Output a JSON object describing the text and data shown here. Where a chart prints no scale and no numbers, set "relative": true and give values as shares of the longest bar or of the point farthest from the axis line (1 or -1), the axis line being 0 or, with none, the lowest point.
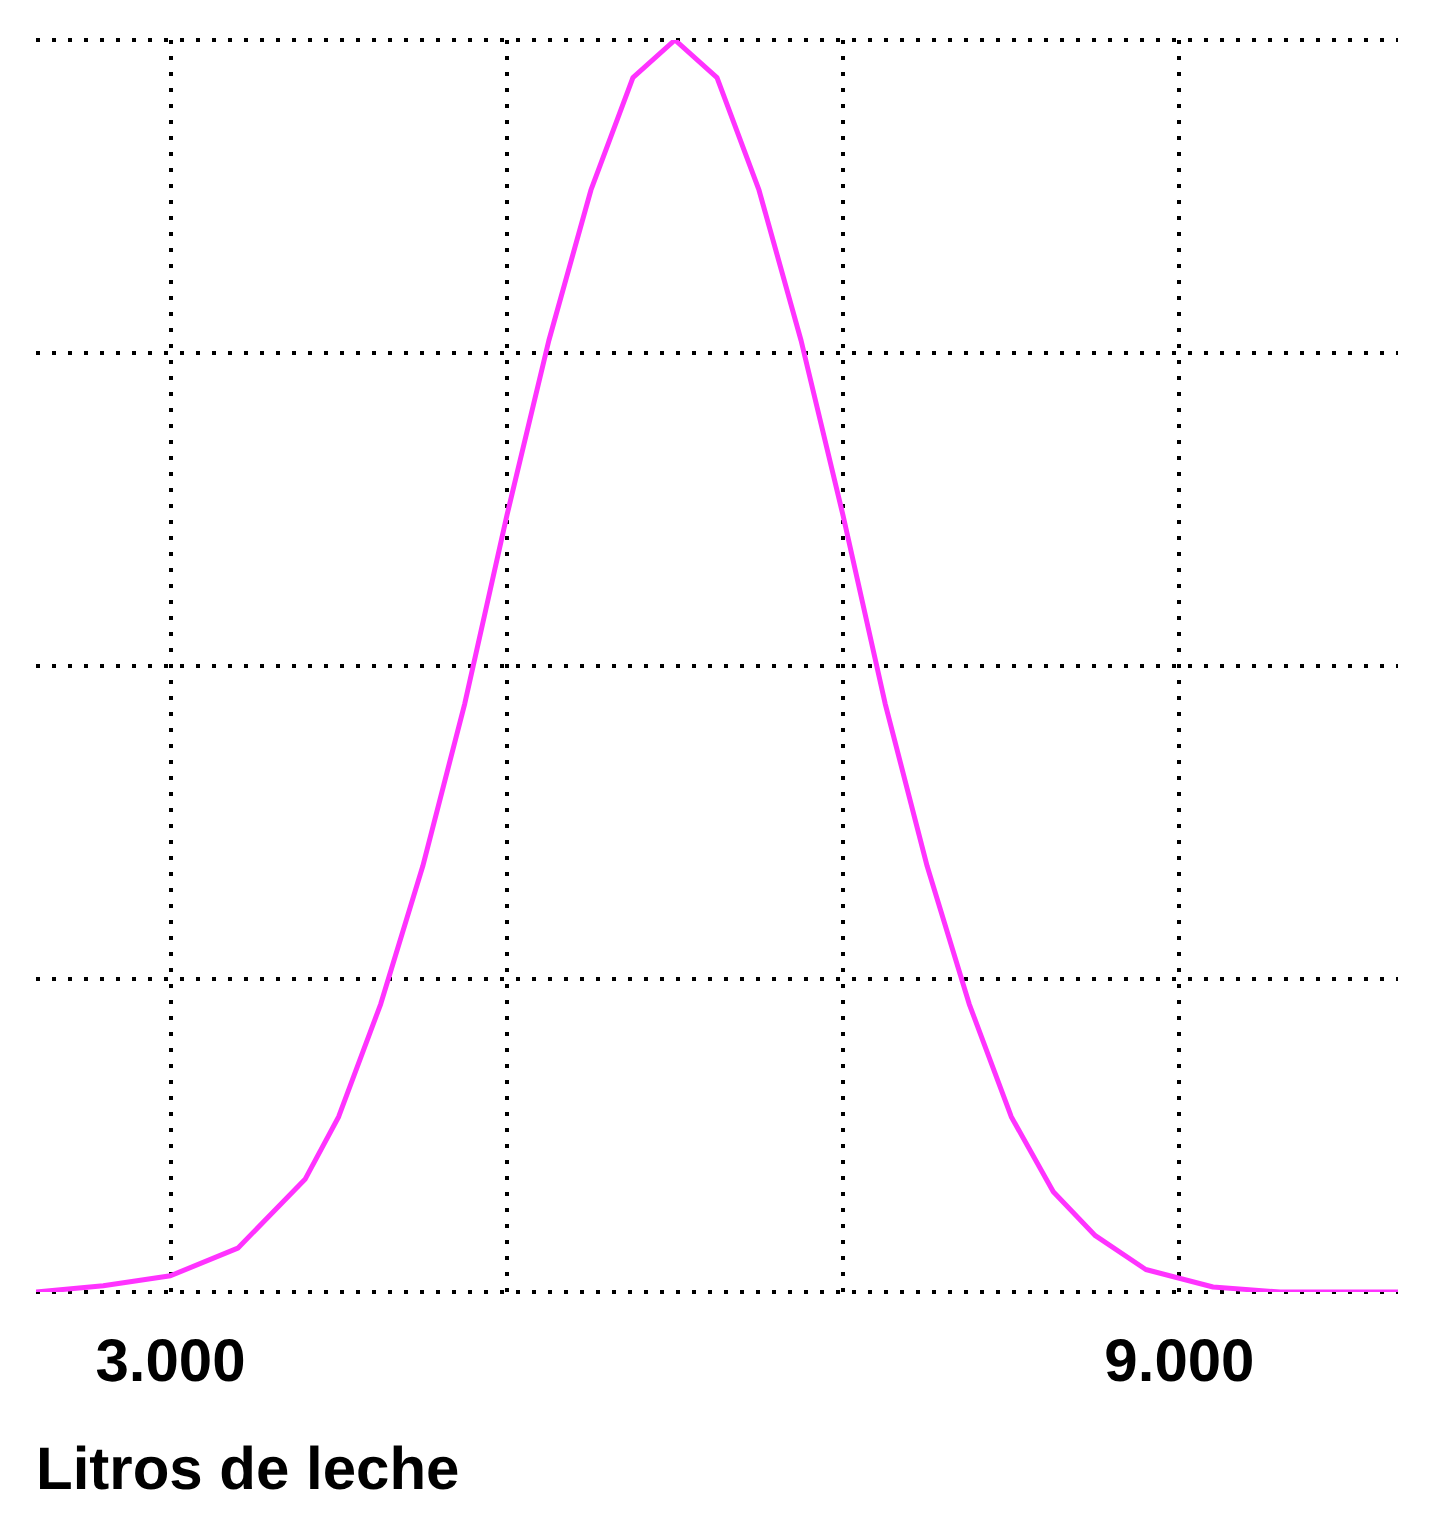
{
  "chart_data": {
    "type": "line",
    "xlabel": "Litros de leche",
    "relative": true,
    "x": [
      2.2,
      2.6,
      3.0,
      3.4,
      3.8,
      4.0,
      4.25,
      4.5,
      4.75,
      5.0,
      5.25,
      5.5,
      5.75,
      6.0,
      6.25,
      6.5,
      6.75,
      7.0,
      7.25,
      7.5,
      7.75,
      8.0,
      8.25,
      8.5,
      8.8,
      9.2,
      9.6,
      10.3
    ],
    "series": [
      {
        "color": "#ff33ff",
        "values": [
          0.0,
          0.005,
          0.013,
          0.035,
          0.09,
          0.14,
          0.23,
          0.34,
          0.47,
          0.62,
          0.76,
          0.88,
          0.97,
          1.0,
          0.97,
          0.88,
          0.76,
          0.62,
          0.47,
          0.34,
          0.23,
          0.14,
          0.08,
          0.045,
          0.018,
          0.004,
          0.0,
          0.0
        ]
      }
    ],
    "xlim": [
      2.2,
      10.3
    ],
    "xticks": [
      {
        "value": 3,
        "label": "3.000"
      },
      {
        "value": 5,
        "label": null
      },
      {
        "value": 7,
        "label": null
      },
      {
        "value": 9,
        "label": "9.000"
      }
    ],
    "grid": true,
    "marker": "none",
    "line_style": "solid",
    "legend": false
  }
}
